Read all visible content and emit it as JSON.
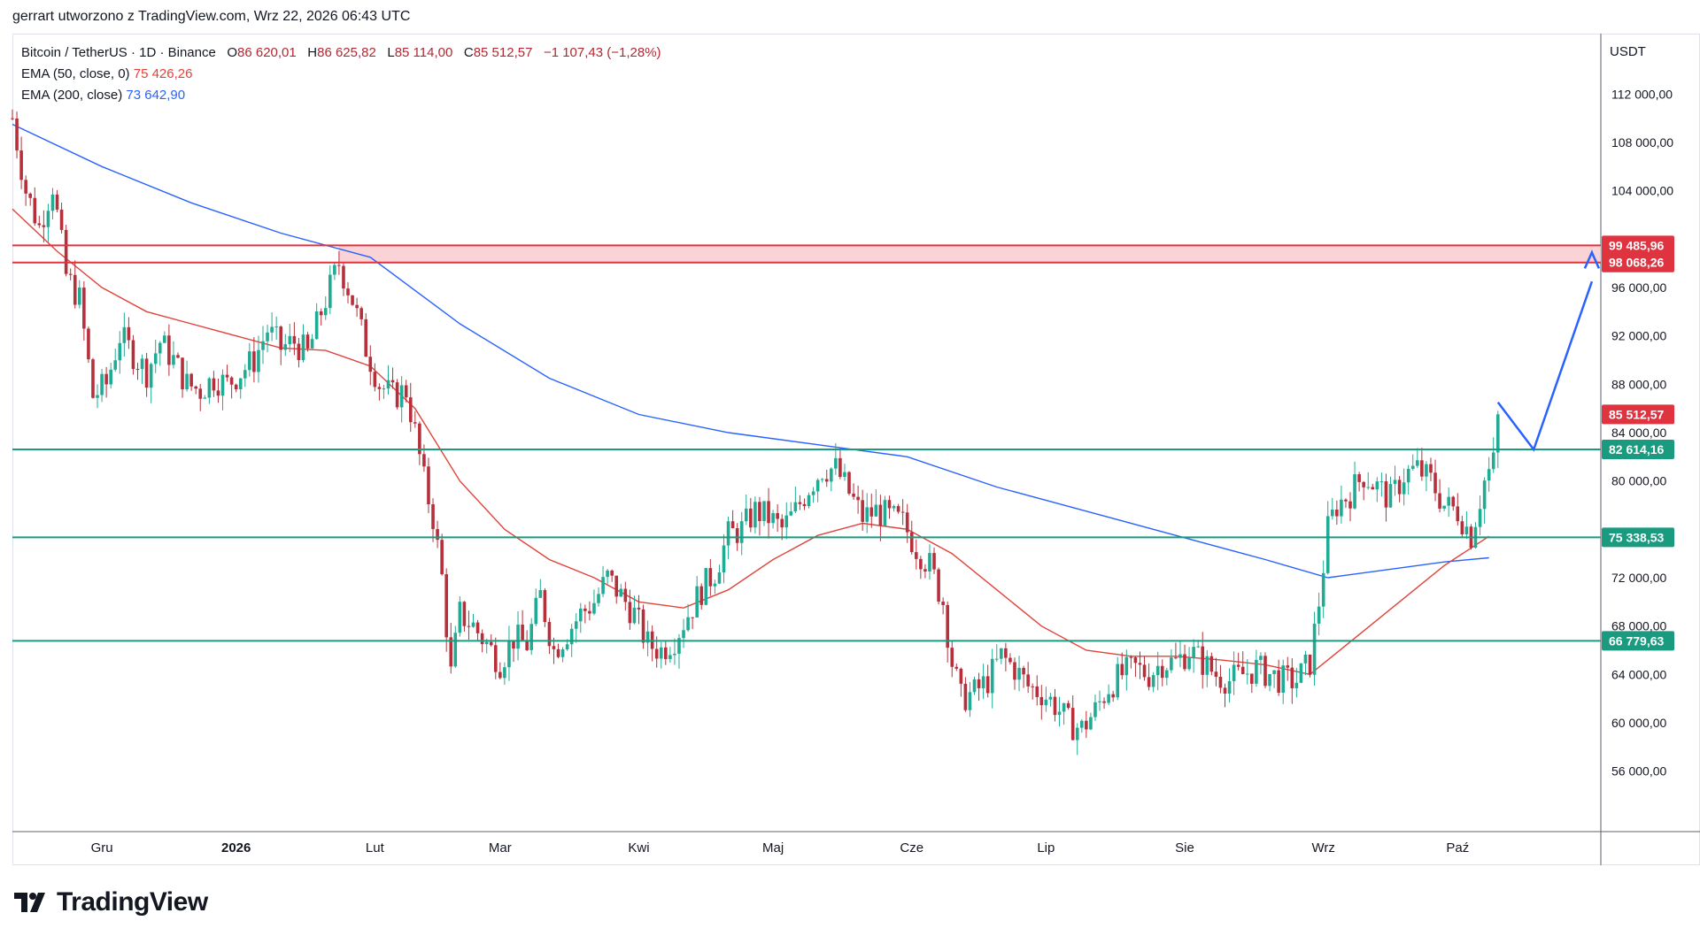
{
  "header": {
    "author_line": "gerrart utworzono z TradingView.com, Wrz 22, 2026 06:43 UTC"
  },
  "legend": {
    "symbol": "Bitcoin / TetherUS · 1D · Binance",
    "o_label": "O",
    "o_value": "86 620,01",
    "h_label": "H",
    "h_value": "86 625,82",
    "l_label": "L",
    "l_value": "85 114,00",
    "c_label": "C",
    "c_value": "85 512,57",
    "change": "−1 107,43 (−1,28%)",
    "ema50_label": "EMA (50, close, 0)",
    "ema50_value": "75 426,26",
    "ema200_label": "EMA (200, close)",
    "ema200_value": "73 642,90"
  },
  "currency": "USDT",
  "brand": {
    "name": "TradingView"
  },
  "colors": {
    "up": "#22ab94",
    "down": "#b5303b",
    "ema50": "#e0433a",
    "ema200": "#2962ff",
    "support": "#1a9a7f",
    "resistance": "#e03340",
    "zone_fill": "#f7c8cc",
    "projection": "#2962ff"
  },
  "chart_data": {
    "type": "candlestick",
    "y_ticks": [
      "112 000,00",
      "108 000,00",
      "104 000,00",
      "96 000,00",
      "92 000,00",
      "88 000,00",
      "84 000,00",
      "80 000,00",
      "72 000,00",
      "68 000,00",
      "64 000,00",
      "60 000,00",
      "56 000,00"
    ],
    "y_tick_values": [
      112000,
      108000,
      104000,
      96000,
      92000,
      88000,
      84000,
      80000,
      72000,
      68000,
      64000,
      60000,
      56000
    ],
    "ylim": [
      51000,
      117000
    ],
    "x_labels": [
      "Gru",
      "2026",
      "Lut",
      "Mar",
      "Kwi",
      "Maj",
      "Cze",
      "Lip",
      "Sie",
      "Wrz",
      "Paź"
    ],
    "x_label_days": [
      20,
      50,
      81,
      109,
      140,
      170,
      201,
      231,
      262,
      293,
      323
    ],
    "x_range_days": [
      0,
      355
    ],
    "horizontal_levels": [
      {
        "value": 99485.96,
        "label": "99 485,96",
        "kind": "resistance"
      },
      {
        "value": 98068.26,
        "label": "98 068,26",
        "kind": "resistance"
      },
      {
        "value": 82614.16,
        "label": "82 614,16",
        "kind": "support"
      },
      {
        "value": 75338.53,
        "label": "75 338,53",
        "kind": "support"
      },
      {
        "value": 66779.63,
        "label": "66 779,63",
        "kind": "support"
      }
    ],
    "last_price": {
      "value": 85512.57,
      "label": "85 512,57"
    },
    "resistance_zone": {
      "from": 98068.26,
      "to": 99485.96,
      "start_day": 73
    },
    "candles_anchor_close": [
      [
        0,
        110000
      ],
      [
        3,
        104000
      ],
      [
        6,
        101000
      ],
      [
        9,
        104500
      ],
      [
        12,
        97000
      ],
      [
        15,
        95000
      ],
      [
        18,
        87000
      ],
      [
        21,
        88000
      ],
      [
        24,
        92000
      ],
      [
        27,
        90500
      ],
      [
        30,
        89000
      ],
      [
        33,
        91500
      ],
      [
        36,
        90000
      ],
      [
        39,
        88000
      ],
      [
        42,
        87500
      ],
      [
        45,
        88500
      ],
      [
        48,
        88000
      ],
      [
        51,
        89000
      ],
      [
        54,
        90000
      ],
      [
        57,
        92500
      ],
      [
        60,
        91000
      ],
      [
        63,
        91500
      ],
      [
        66,
        90500
      ],
      [
        69,
        94000
      ],
      [
        73,
        98000
      ],
      [
        76,
        95000
      ],
      [
        79,
        91000
      ],
      [
        82,
        88000
      ],
      [
        85,
        87000
      ],
      [
        88,
        87500
      ],
      [
        90,
        84000
      ],
      [
        92,
        80000
      ],
      [
        94,
        77000
      ],
      [
        96,
        72000
      ],
      [
        98,
        64000
      ],
      [
        100,
        69000
      ],
      [
        103,
        68000
      ],
      [
        106,
        66500
      ],
      [
        109,
        65000
      ],
      [
        112,
        67000
      ],
      [
        115,
        66500
      ],
      [
        118,
        70500
      ],
      [
        121,
        66000
      ],
      [
        124,
        67500
      ],
      [
        127,
        69000
      ],
      [
        130,
        70000
      ],
      [
        133,
        72000
      ],
      [
        136,
        70500
      ],
      [
        139,
        69000
      ],
      [
        142,
        66500
      ],
      [
        145,
        66000
      ],
      [
        148,
        67000
      ],
      [
        151,
        69000
      ],
      [
        154,
        71000
      ],
      [
        157,
        72500
      ],
      [
        160,
        75500
      ],
      [
        163,
        76000
      ],
      [
        166,
        77500
      ],
      [
        169,
        77000
      ],
      [
        172,
        76000
      ],
      [
        175,
        77500
      ],
      [
        178,
        79500
      ],
      [
        181,
        81000
      ],
      [
        184,
        81000
      ],
      [
        187,
        79000
      ],
      [
        190,
        77000
      ],
      [
        193,
        77500
      ],
      [
        196,
        77000
      ],
      [
        199,
        76500
      ],
      [
        202,
        74500
      ],
      [
        205,
        73000
      ],
      [
        208,
        70000
      ],
      [
        210,
        65000
      ],
      [
        212,
        62000
      ],
      [
        215,
        62500
      ],
      [
        218,
        63500
      ],
      [
        221,
        65500
      ],
      [
        224,
        64500
      ],
      [
        227,
        63000
      ],
      [
        230,
        62500
      ],
      [
        233,
        61500
      ],
      [
        236,
        60000
      ],
      [
        239,
        59500
      ],
      [
        242,
        61000
      ],
      [
        245,
        63000
      ],
      [
        248,
        64000
      ],
      [
        251,
        64500
      ],
      [
        254,
        64000
      ],
      [
        257,
        65000
      ],
      [
        260,
        65000
      ],
      [
        263,
        66000
      ],
      [
        266,
        65000
      ],
      [
        269,
        64000
      ],
      [
        272,
        63500
      ],
      [
        275,
        64000
      ],
      [
        278,
        64500
      ],
      [
        281,
        64000
      ],
      [
        284,
        63500
      ],
      [
        287,
        63500
      ],
      [
        290,
        65000
      ],
      [
        292,
        70000
      ],
      [
        294,
        76000
      ],
      [
        296,
        78000
      ],
      [
        299,
        79000
      ],
      [
        302,
        80500
      ],
      [
        305,
        79500
      ],
      [
        308,
        78500
      ],
      [
        311,
        80500
      ],
      [
        314,
        81000
      ],
      [
        317,
        80000
      ],
      [
        320,
        78000
      ],
      [
        323,
        77500
      ],
      [
        326,
        75500
      ],
      [
        329,
        80000
      ],
      [
        331,
        81500
      ],
      [
        332,
        86500
      ],
      [
        333,
        85512.57
      ]
    ],
    "ema50": [
      [
        0,
        102500
      ],
      [
        10,
        99000
      ],
      [
        20,
        96000
      ],
      [
        30,
        94000
      ],
      [
        40,
        93000
      ],
      [
        50,
        92000
      ],
      [
        60,
        91000
      ],
      [
        70,
        90800
      ],
      [
        80,
        89500
      ],
      [
        90,
        86000
      ],
      [
        100,
        80000
      ],
      [
        110,
        76000
      ],
      [
        120,
        73500
      ],
      [
        130,
        72000
      ],
      [
        140,
        70000
      ],
      [
        150,
        69500
      ],
      [
        160,
        71000
      ],
      [
        170,
        73500
      ],
      [
        180,
        75500
      ],
      [
        190,
        76500
      ],
      [
        200,
        76000
      ],
      [
        210,
        74000
      ],
      [
        220,
        71000
      ],
      [
        230,
        68000
      ],
      [
        240,
        66000
      ],
      [
        250,
        65500
      ],
      [
        260,
        65500
      ],
      [
        270,
        65200
      ],
      [
        280,
        64800
      ],
      [
        290,
        64000
      ],
      [
        300,
        67000
      ],
      [
        310,
        70000
      ],
      [
        320,
        73000
      ],
      [
        330,
        75426.26
      ]
    ],
    "ema200": [
      [
        0,
        109500
      ],
      [
        20,
        106000
      ],
      [
        40,
        103000
      ],
      [
        60,
        100500
      ],
      [
        70,
        99500
      ],
      [
        80,
        98500
      ],
      [
        100,
        93000
      ],
      [
        120,
        88500
      ],
      [
        140,
        85500
      ],
      [
        160,
        84000
      ],
      [
        180,
        83000
      ],
      [
        200,
        82000
      ],
      [
        220,
        79500
      ],
      [
        240,
        77500
      ],
      [
        260,
        75500
      ],
      [
        280,
        73500
      ],
      [
        294,
        72000
      ],
      [
        310,
        72800
      ],
      [
        320,
        73300
      ],
      [
        330,
        73642.9
      ]
    ],
    "projection_path": [
      [
        332,
        86500
      ],
      [
        340,
        82600
      ],
      [
        353,
        96500
      ]
    ],
    "projection_arrow_tip": [
      353,
      98900
    ]
  }
}
